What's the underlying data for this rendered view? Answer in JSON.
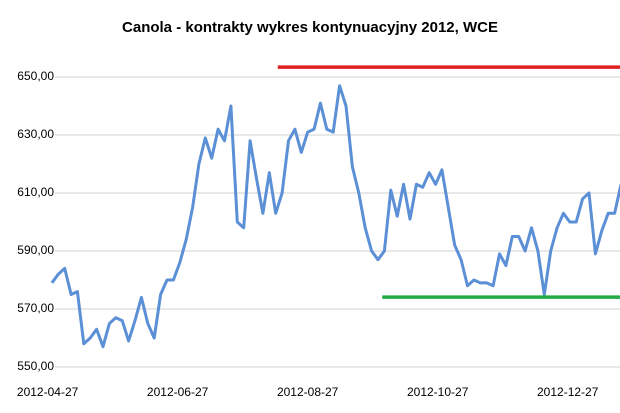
{
  "chart_data": {
    "type": "line",
    "title": "Canola - kontrakty  wykres kontynuacyjny 2012, WCE",
    "x": [
      "2012-04-29",
      "2012-05-02",
      "2012-05-05",
      "2012-05-08",
      "2012-05-11",
      "2012-05-14",
      "2012-05-17",
      "2012-05-20",
      "2012-05-23",
      "2012-05-26",
      "2012-05-29",
      "2012-06-01",
      "2012-06-04",
      "2012-06-07",
      "2012-06-10",
      "2012-06-13",
      "2012-06-16",
      "2012-06-19",
      "2012-06-22",
      "2012-06-25",
      "2012-06-28",
      "2012-07-01",
      "2012-07-04",
      "2012-07-07",
      "2012-07-10",
      "2012-07-13",
      "2012-07-16",
      "2012-07-19",
      "2012-07-22",
      "2012-07-25",
      "2012-07-28",
      "2012-07-31",
      "2012-08-03",
      "2012-08-06",
      "2012-08-09",
      "2012-08-12",
      "2012-08-15",
      "2012-08-18",
      "2012-08-21",
      "2012-08-24",
      "2012-08-27",
      "2012-08-30",
      "2012-09-02",
      "2012-09-05",
      "2012-09-08",
      "2012-09-11",
      "2012-09-14",
      "2012-09-17",
      "2012-09-20",
      "2012-09-23",
      "2012-09-26",
      "2012-09-29",
      "2012-10-02",
      "2012-10-05",
      "2012-10-08",
      "2012-10-11",
      "2012-10-14",
      "2012-10-17",
      "2012-10-20",
      "2012-10-23",
      "2012-10-26",
      "2012-10-29",
      "2012-11-01",
      "2012-11-04",
      "2012-11-07",
      "2012-11-10",
      "2012-11-13",
      "2012-11-16",
      "2012-11-19",
      "2012-11-22",
      "2012-11-25",
      "2012-11-28",
      "2012-12-01",
      "2012-12-04",
      "2012-12-07",
      "2012-12-10",
      "2012-12-13",
      "2012-12-16",
      "2012-12-19",
      "2012-12-22",
      "2012-12-25",
      "2012-12-28",
      "2012-12-31",
      "2013-01-03",
      "2013-01-06",
      "2013-01-09",
      "2013-01-12",
      "2013-01-15",
      "2013-01-18",
      "2013-01-21"
    ],
    "series": [
      {
        "color": "#5b8fd6",
        "values": [
          579,
          582,
          584,
          575,
          576,
          558,
          560,
          563,
          557,
          565,
          567,
          566,
          559,
          566,
          574,
          565,
          560,
          575,
          580,
          580,
          586,
          594,
          605,
          620,
          629,
          622,
          632,
          628,
          640,
          600,
          598,
          628,
          615,
          603,
          617,
          603,
          610,
          628,
          632,
          624,
          631,
          632,
          641,
          632,
          631,
          647,
          640,
          619,
          610,
          598,
          590,
          587,
          590,
          611,
          602,
          613,
          601,
          613,
          612,
          617,
          613,
          618,
          605,
          592,
          587,
          578,
          580,
          579,
          579,
          578,
          589,
          585,
          595,
          595,
          590,
          598,
          590,
          575,
          590,
          598,
          603,
          600,
          600,
          608,
          610,
          589,
          597,
          603,
          603,
          613
        ]
      }
    ],
    "lines": [
      {
        "color": "#e02020",
        "value": 653.4,
        "x": [
          "2012-08-13",
          "2013-01-21"
        ]
      },
      {
        "color": "#22aa44",
        "value": 574.1,
        "x": [
          "2012-10-01",
          "2013-01-21"
        ]
      }
    ],
    "xlim": [
      "2012-04-30",
      "2013-01-21"
    ],
    "xticks": [
      "2012-04-27",
      "2012-06-27",
      "2012-08-27",
      "2012-10-27",
      "2012-12-27"
    ],
    "ylim": [
      550,
      650
    ],
    "yticks": [
      {
        "value": 550,
        "label": "550,00"
      },
      {
        "value": 570,
        "label": "570,00"
      },
      {
        "value": 590,
        "label": "590,00"
      },
      {
        "value": 610,
        "label": "610,00"
      },
      {
        "value": 630,
        "label": "630,00"
      },
      {
        "value": 650,
        "label": "650,00"
      }
    ],
    "grid": true
  }
}
